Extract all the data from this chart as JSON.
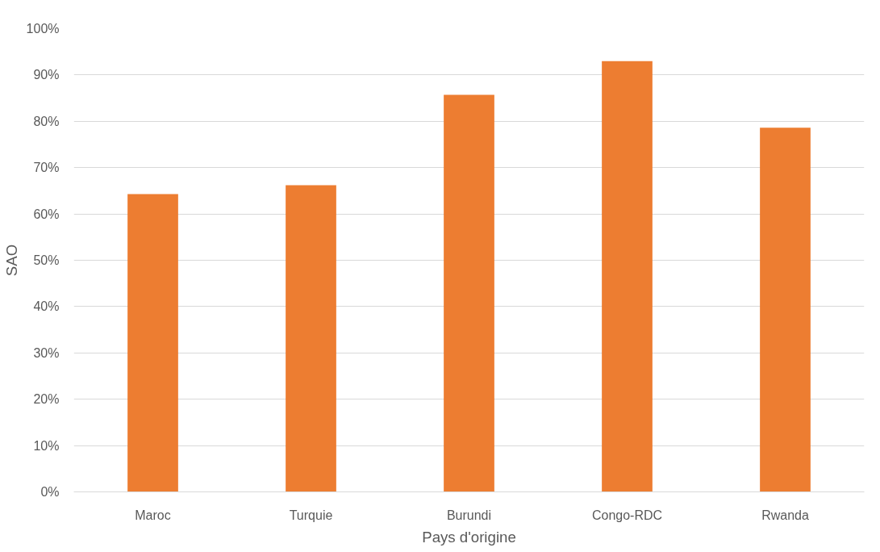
{
  "chart_data": {
    "type": "bar",
    "xlabel": "Pays d'origine",
    "ylabel": "SAO",
    "categories": [
      "Maroc",
      "Turquie",
      "Burundi",
      "Congo-RDC",
      "Rwanda"
    ],
    "values": [
      64.3,
      66.2,
      85.7,
      93.0,
      78.6
    ],
    "color": "#ed7d31",
    "ylim": [
      0,
      100
    ],
    "yticks": [
      {
        "value": 0,
        "label": "0%"
      },
      {
        "value": 10,
        "label": "10%"
      },
      {
        "value": 20,
        "label": "20%"
      },
      {
        "value": 30,
        "label": "30%"
      },
      {
        "value": 40,
        "label": "40%"
      },
      {
        "value": 50,
        "label": "50%"
      },
      {
        "value": 60,
        "label": "60%"
      },
      {
        "value": 70,
        "label": "70%"
      },
      {
        "value": 80,
        "label": "80%"
      },
      {
        "value": 90,
        "label": "90%"
      },
      {
        "value": 100,
        "label": "100%"
      }
    ],
    "grid": "y"
  }
}
